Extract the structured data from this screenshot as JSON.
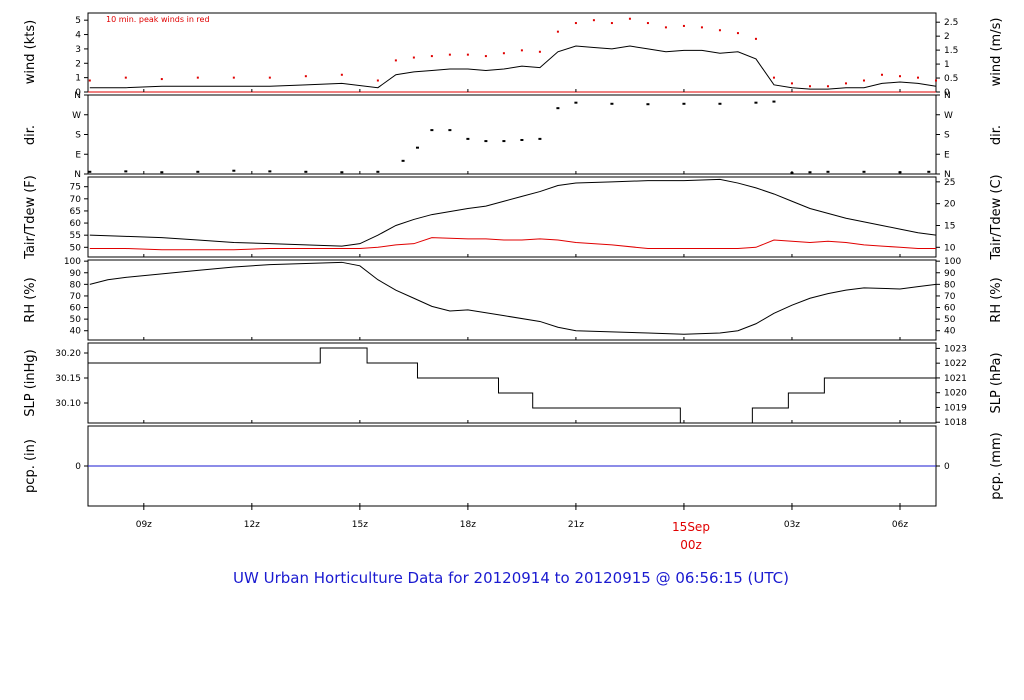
{
  "title": "UW Urban Horticulture Data for 20120914  to  20120915 @ 06:56:15  (UTC)",
  "colors": {
    "primary": "#000000",
    "secondary": "#e00000",
    "precip": "#1a1ad0",
    "title": "#1a1ad0"
  },
  "x_axis": {
    "ticks": [
      "09z",
      "12z",
      "15z",
      "18z",
      "21z",
      "03z",
      "06z"
    ],
    "tick_hours": [
      9,
      12,
      15,
      18,
      21,
      27,
      30
    ],
    "date_label": "15Sep",
    "date_sublabel": "00z",
    "date_hour": 24,
    "start_hour": 7.45,
    "end_hour": 31.0
  },
  "panels": {
    "wind": {
      "ylabel_left": "wind (kts)",
      "ylabel_right": "wind (m/s)",
      "note": "10 min. peak winds in red",
      "left_ticks": [
        "0",
        "1",
        "2",
        "3",
        "4",
        "5"
      ],
      "left_values": [
        0,
        1,
        2,
        3,
        4,
        5
      ],
      "left_range": [
        0,
        5.5
      ],
      "right_ticks": [
        "0",
        "0.5",
        "1",
        "1.5",
        "2",
        "2.5"
      ],
      "right_values": [
        0,
        0.5,
        1,
        1.5,
        2,
        2.5
      ]
    },
    "dir": {
      "ylabel_left": "dir.",
      "ylabel_right": "dir.",
      "ticks": [
        "N",
        "E",
        "S",
        "W",
        "N"
      ],
      "values": [
        0,
        90,
        180,
        270,
        360
      ],
      "range": [
        0,
        360
      ]
    },
    "temp": {
      "ylabel_left": "Tair/Tdew (F)",
      "ylabel_right": "Tair/Tdew (C)",
      "left_ticks": [
        "50",
        "55",
        "60",
        "65",
        "70",
        "75"
      ],
      "left_values": [
        50,
        55,
        60,
        65,
        70,
        75
      ],
      "left_range": [
        46,
        79
      ],
      "right_ticks": [
        "10",
        "15",
        "20",
        "25"
      ],
      "right_values": [
        10,
        15,
        20,
        25
      ]
    },
    "rh": {
      "ylabel_left": "RH (%)",
      "ylabel_right": "RH (%)",
      "ticks": [
        "40",
        "50",
        "60",
        "70",
        "80",
        "90",
        "100"
      ],
      "values": [
        40,
        50,
        60,
        70,
        80,
        90,
        100
      ],
      "range": [
        32,
        101
      ]
    },
    "slp": {
      "ylabel_left": "SLP (inHg)",
      "ylabel_right": "SLP (hPa)",
      "left_ticks": [
        "30.10",
        "30.15",
        "30.20"
      ],
      "left_values": [
        30.1,
        30.15,
        30.2
      ],
      "left_range": [
        30.06,
        30.22
      ],
      "right_ticks": [
        "1018",
        "1019",
        "1020",
        "1021",
        "1022",
        "1023"
      ],
      "right_values": [
        1018,
        1019,
        1020,
        1021,
        1022,
        1023
      ]
    },
    "pcp": {
      "ylabel_left": "pcp. (in)",
      "ylabel_right": "pcp. (mm)",
      "left_ticks": [
        "0"
      ],
      "right_ticks": [
        "0"
      ],
      "range": [
        -0.2,
        0.2
      ]
    }
  },
  "chart_data": [
    {
      "type": "line",
      "panel": "wind",
      "series": [
        {
          "x": [
            7.5,
            8.5,
            9.5,
            10.5,
            11.5,
            12.5,
            13.5,
            14.5,
            15.5,
            16.0,
            16.5,
            17.0,
            17.5,
            18.0,
            18.5,
            19.0,
            19.5,
            20.0,
            20.5,
            21.0,
            21.5,
            22.0,
            22.5,
            23.0,
            23.5,
            24.0,
            24.5,
            25.0,
            25.5,
            26.0,
            26.5,
            27.0,
            27.5,
            28.0,
            28.5,
            29.0,
            29.5,
            30.0,
            30.5,
            31.0
          ],
          "values": [
            0.3,
            0.3,
            0.4,
            0.4,
            0.4,
            0.4,
            0.5,
            0.6,
            0.3,
            1.2,
            1.4,
            1.5,
            1.6,
            1.6,
            1.5,
            1.6,
            1.8,
            1.7,
            2.8,
            3.2,
            3.1,
            3.0,
            3.2,
            3.0,
            2.8,
            2.9,
            2.9,
            2.7,
            2.8,
            2.3,
            0.5,
            0.3,
            0.2,
            0.2,
            0.3,
            0.3,
            0.6,
            0.7,
            0.6,
            0.4
          ]
        },
        {
          "values": [
            0.8,
            1,
            0.9,
            1,
            1,
            1,
            1.1,
            1.2,
            0.8,
            2.2,
            2.4,
            2.5,
            2.6,
            2.6,
            2.5,
            2.7,
            2.9,
            2.8,
            4.2,
            4.8,
            5.0,
            4.8,
            5.1,
            4.8,
            4.5,
            4.6,
            4.5,
            4.3,
            4.1,
            3.7,
            1.0,
            0.6,
            0.4,
            0.4,
            0.6,
            0.8,
            1.2,
            1.1,
            1.0,
            0.8
          ]
        }
      ]
    },
    {
      "type": "scatter",
      "panel": "dir",
      "x": [
        7.5,
        8.5,
        9.5,
        10.5,
        11.5,
        12.5,
        13.5,
        14.5,
        15.5,
        16.2,
        16.6,
        17.0,
        17.5,
        18.0,
        18.5,
        19.0,
        19.5,
        20.0,
        20.5,
        21.0,
        22.0,
        23.0,
        24.0,
        25.0,
        26.0,
        26.5,
        27.0,
        27.5,
        28.0,
        29.0,
        30.0,
        30.8
      ],
      "values": [
        10,
        12,
        8,
        10,
        15,
        12,
        10,
        8,
        10,
        60,
        120,
        200,
        200,
        160,
        150,
        150,
        155,
        160,
        300,
        325,
        320,
        318,
        320,
        320,
        325,
        330,
        5,
        8,
        10,
        10,
        8,
        10
      ]
    },
    {
      "type": "line",
      "panel": "temp",
      "series": [
        {
          "x": [
            7.5,
            8.5,
            9.5,
            10.5,
            11.5,
            12.5,
            13.5,
            14.5,
            15.0,
            15.5,
            16.0,
            16.5,
            17.0,
            18.0,
            18.5,
            19.0,
            19.5,
            20.0,
            20.5,
            21.0,
            22.0,
            23.0,
            24.0,
            25.0,
            25.5,
            26.0,
            26.5,
            27.0,
            27.5,
            28.0,
            28.5,
            29.0,
            29.5,
            30.0,
            30.5,
            31.0
          ],
          "values": [
            55,
            54.5,
            54,
            53,
            52,
            51.5,
            51,
            50.5,
            51.5,
            55,
            59,
            61.5,
            63.5,
            66,
            67,
            69,
            71,
            73,
            75.5,
            76.5,
            77,
            77.5,
            77.5,
            78,
            76.5,
            74.5,
            72,
            69,
            66,
            64,
            62,
            60.5,
            59,
            57.5,
            56,
            55
          ]
        },
        {
          "values": [
            49.5,
            49.5,
            49,
            49,
            49,
            49.5,
            49.5,
            49.5,
            49.5,
            50,
            51,
            51.5,
            54,
            53.5,
            53.5,
            53,
            53,
            53.5,
            53,
            52,
            51,
            49.5,
            49.5,
            49.5,
            49.5,
            50,
            53,
            52.5,
            52,
            52.5,
            52,
            51,
            50.5,
            50,
            49.5,
            49.5
          ]
        }
      ]
    },
    {
      "type": "line",
      "panel": "rh",
      "x": [
        7.5,
        8.0,
        8.5,
        9.5,
        10.5,
        11.5,
        12.5,
        13.5,
        14.5,
        15.0,
        15.5,
        16.0,
        16.5,
        17.0,
        17.5,
        18.0,
        19.0,
        20.0,
        20.5,
        21.0,
        22.0,
        23.0,
        24.0,
        25.0,
        25.5,
        26.0,
        26.5,
        27.0,
        27.5,
        28.0,
        28.5,
        29.0,
        30.0,
        30.5,
        31.0
      ],
      "values": [
        80,
        84,
        86,
        89,
        92,
        95,
        97,
        98,
        99,
        96,
        84,
        75,
        68,
        61,
        57,
        58,
        53,
        48,
        43,
        40,
        39,
        38,
        37,
        38,
        40,
        46,
        55,
        62,
        68,
        72,
        75,
        77,
        76,
        78,
        80
      ]
    },
    {
      "type": "line",
      "panel": "slp",
      "step": true,
      "x": [
        7.45,
        13.9,
        15.2,
        16.6,
        18.85,
        19.8,
        21.8,
        23.9,
        25.9,
        26.9,
        27.9,
        28.9,
        31.0
      ],
      "values": [
        30.18,
        30.21,
        30.18,
        30.15,
        30.12,
        30.09,
        30.09,
        30.06,
        30.09,
        30.12,
        30.15,
        30.15,
        30.18
      ]
    },
    {
      "type": "line",
      "panel": "pcp",
      "x": [
        7.45,
        31.0
      ],
      "values": [
        0,
        0
      ]
    }
  ]
}
